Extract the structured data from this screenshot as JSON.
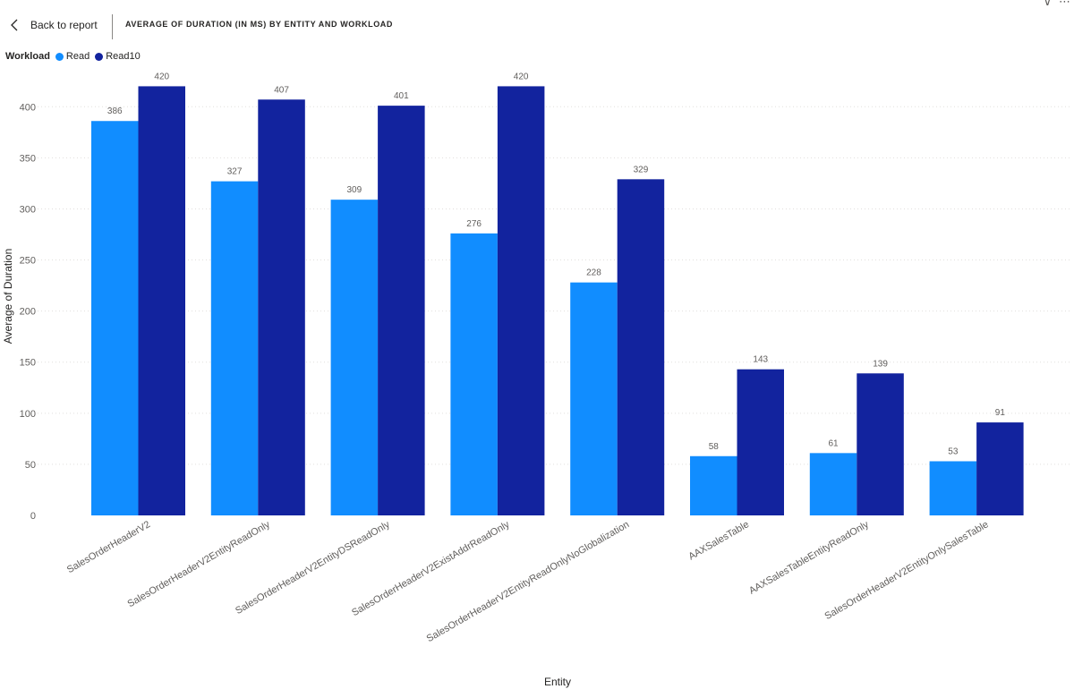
{
  "header": {
    "back_label": "Back to report",
    "title": "AVERAGE OF DURATION (IN MS) BY ENTITY AND WORKLOAD"
  },
  "legend": {
    "title": "Workload"
  },
  "icons": {
    "back": "chevron-left-icon",
    "filter": "filter-icon",
    "more": "more-options-icon"
  },
  "colors": {
    "read": "#118DFF",
    "read10": "#12239E",
    "grid": "#e1dfdd"
  },
  "chart_data": {
    "type": "bar",
    "title": "AVERAGE OF DURATION (IN MS) BY ENTITY AND WORKLOAD",
    "xlabel": "Entity",
    "ylabel": "Average of Duration",
    "ylim": [
      0,
      430
    ],
    "yticks": [
      0,
      50,
      100,
      150,
      200,
      250,
      300,
      350,
      400
    ],
    "grid": true,
    "legend_position": "top-left",
    "categories": [
      "SalesOrderHeaderV2",
      "SalesOrderHeaderV2EntityReadOnly",
      "SalesOrderHeaderV2EntityDSReadOnly",
      "SalesOrderHeaderV2ExistAddrReadOnly",
      "SalesOrderHeaderV2EntityReadOnlyNoGlobalization",
      "AAXSalesTable",
      "AAXSalesTableEntityReadOnly",
      "SalesOrderHeaderV2EntityOnlySalesTable"
    ],
    "series": [
      {
        "name": "Read",
        "color": "#118DFF",
        "values": [
          386,
          327,
          309,
          276,
          228,
          58,
          61,
          53
        ]
      },
      {
        "name": "Read10",
        "color": "#12239E",
        "values": [
          420,
          407,
          401,
          420,
          329,
          143,
          139,
          91
        ]
      }
    ]
  }
}
